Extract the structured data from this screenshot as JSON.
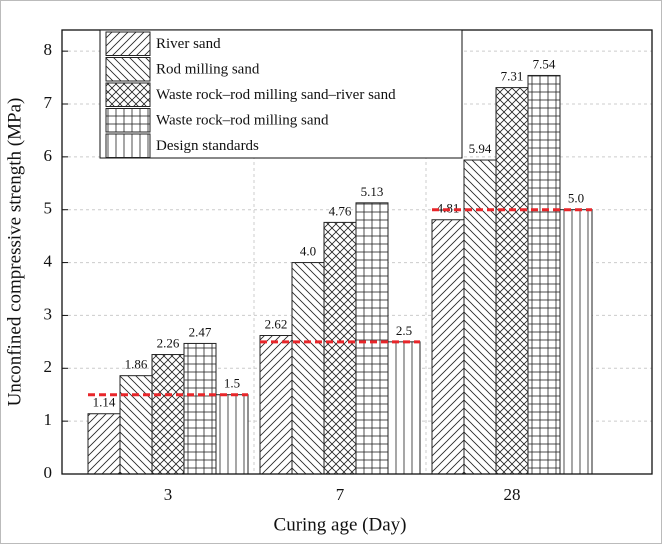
{
  "chart_data": {
    "type": "bar",
    "y_label": "Unconfined compressive strength (MPa)",
    "x_label": "Curing age (Day)",
    "categories": [
      "3",
      "7",
      "28"
    ],
    "ylim": [
      0,
      8.4
    ],
    "yticks": [
      0,
      1,
      2,
      3,
      4,
      5,
      6,
      7,
      8
    ],
    "grid": true,
    "legend": "upper left",
    "reference_series": 4,
    "reference_color": "#e8262a",
    "series": [
      {
        "name": "River sand",
        "color": "#222222",
        "hatch": "/",
        "values": [
          1.14,
          2.62,
          4.81
        ],
        "value_labels": [
          "1.14",
          "2.62",
          "4.81"
        ]
      },
      {
        "name": "Rod milling sand",
        "color": "#222222",
        "hatch": "\\",
        "values": [
          1.86,
          4,
          5.94
        ],
        "value_labels": [
          "1.86",
          "4.0",
          "5.94"
        ]
      },
      {
        "name": "Waste rock–rod milling sand–river sand",
        "color": "#222222",
        "hatch": "x",
        "values": [
          2.26,
          4.76,
          7.31
        ],
        "value_labels": [
          "2.26",
          "4.76",
          "7.31"
        ]
      },
      {
        "name": "Waste rock–rod milling sand",
        "color": "#222222",
        "hatch": "+",
        "values": [
          2.47,
          5.13,
          7.54
        ],
        "value_labels": [
          "2.47",
          "5.13",
          "7.54"
        ]
      },
      {
        "name": "Design standards",
        "color": "#222222",
        "hatch": "|",
        "values": [
          1.5,
          2.5,
          5
        ],
        "value_labels": [
          "1.5",
          "2.5",
          "5.0"
        ]
      }
    ]
  }
}
